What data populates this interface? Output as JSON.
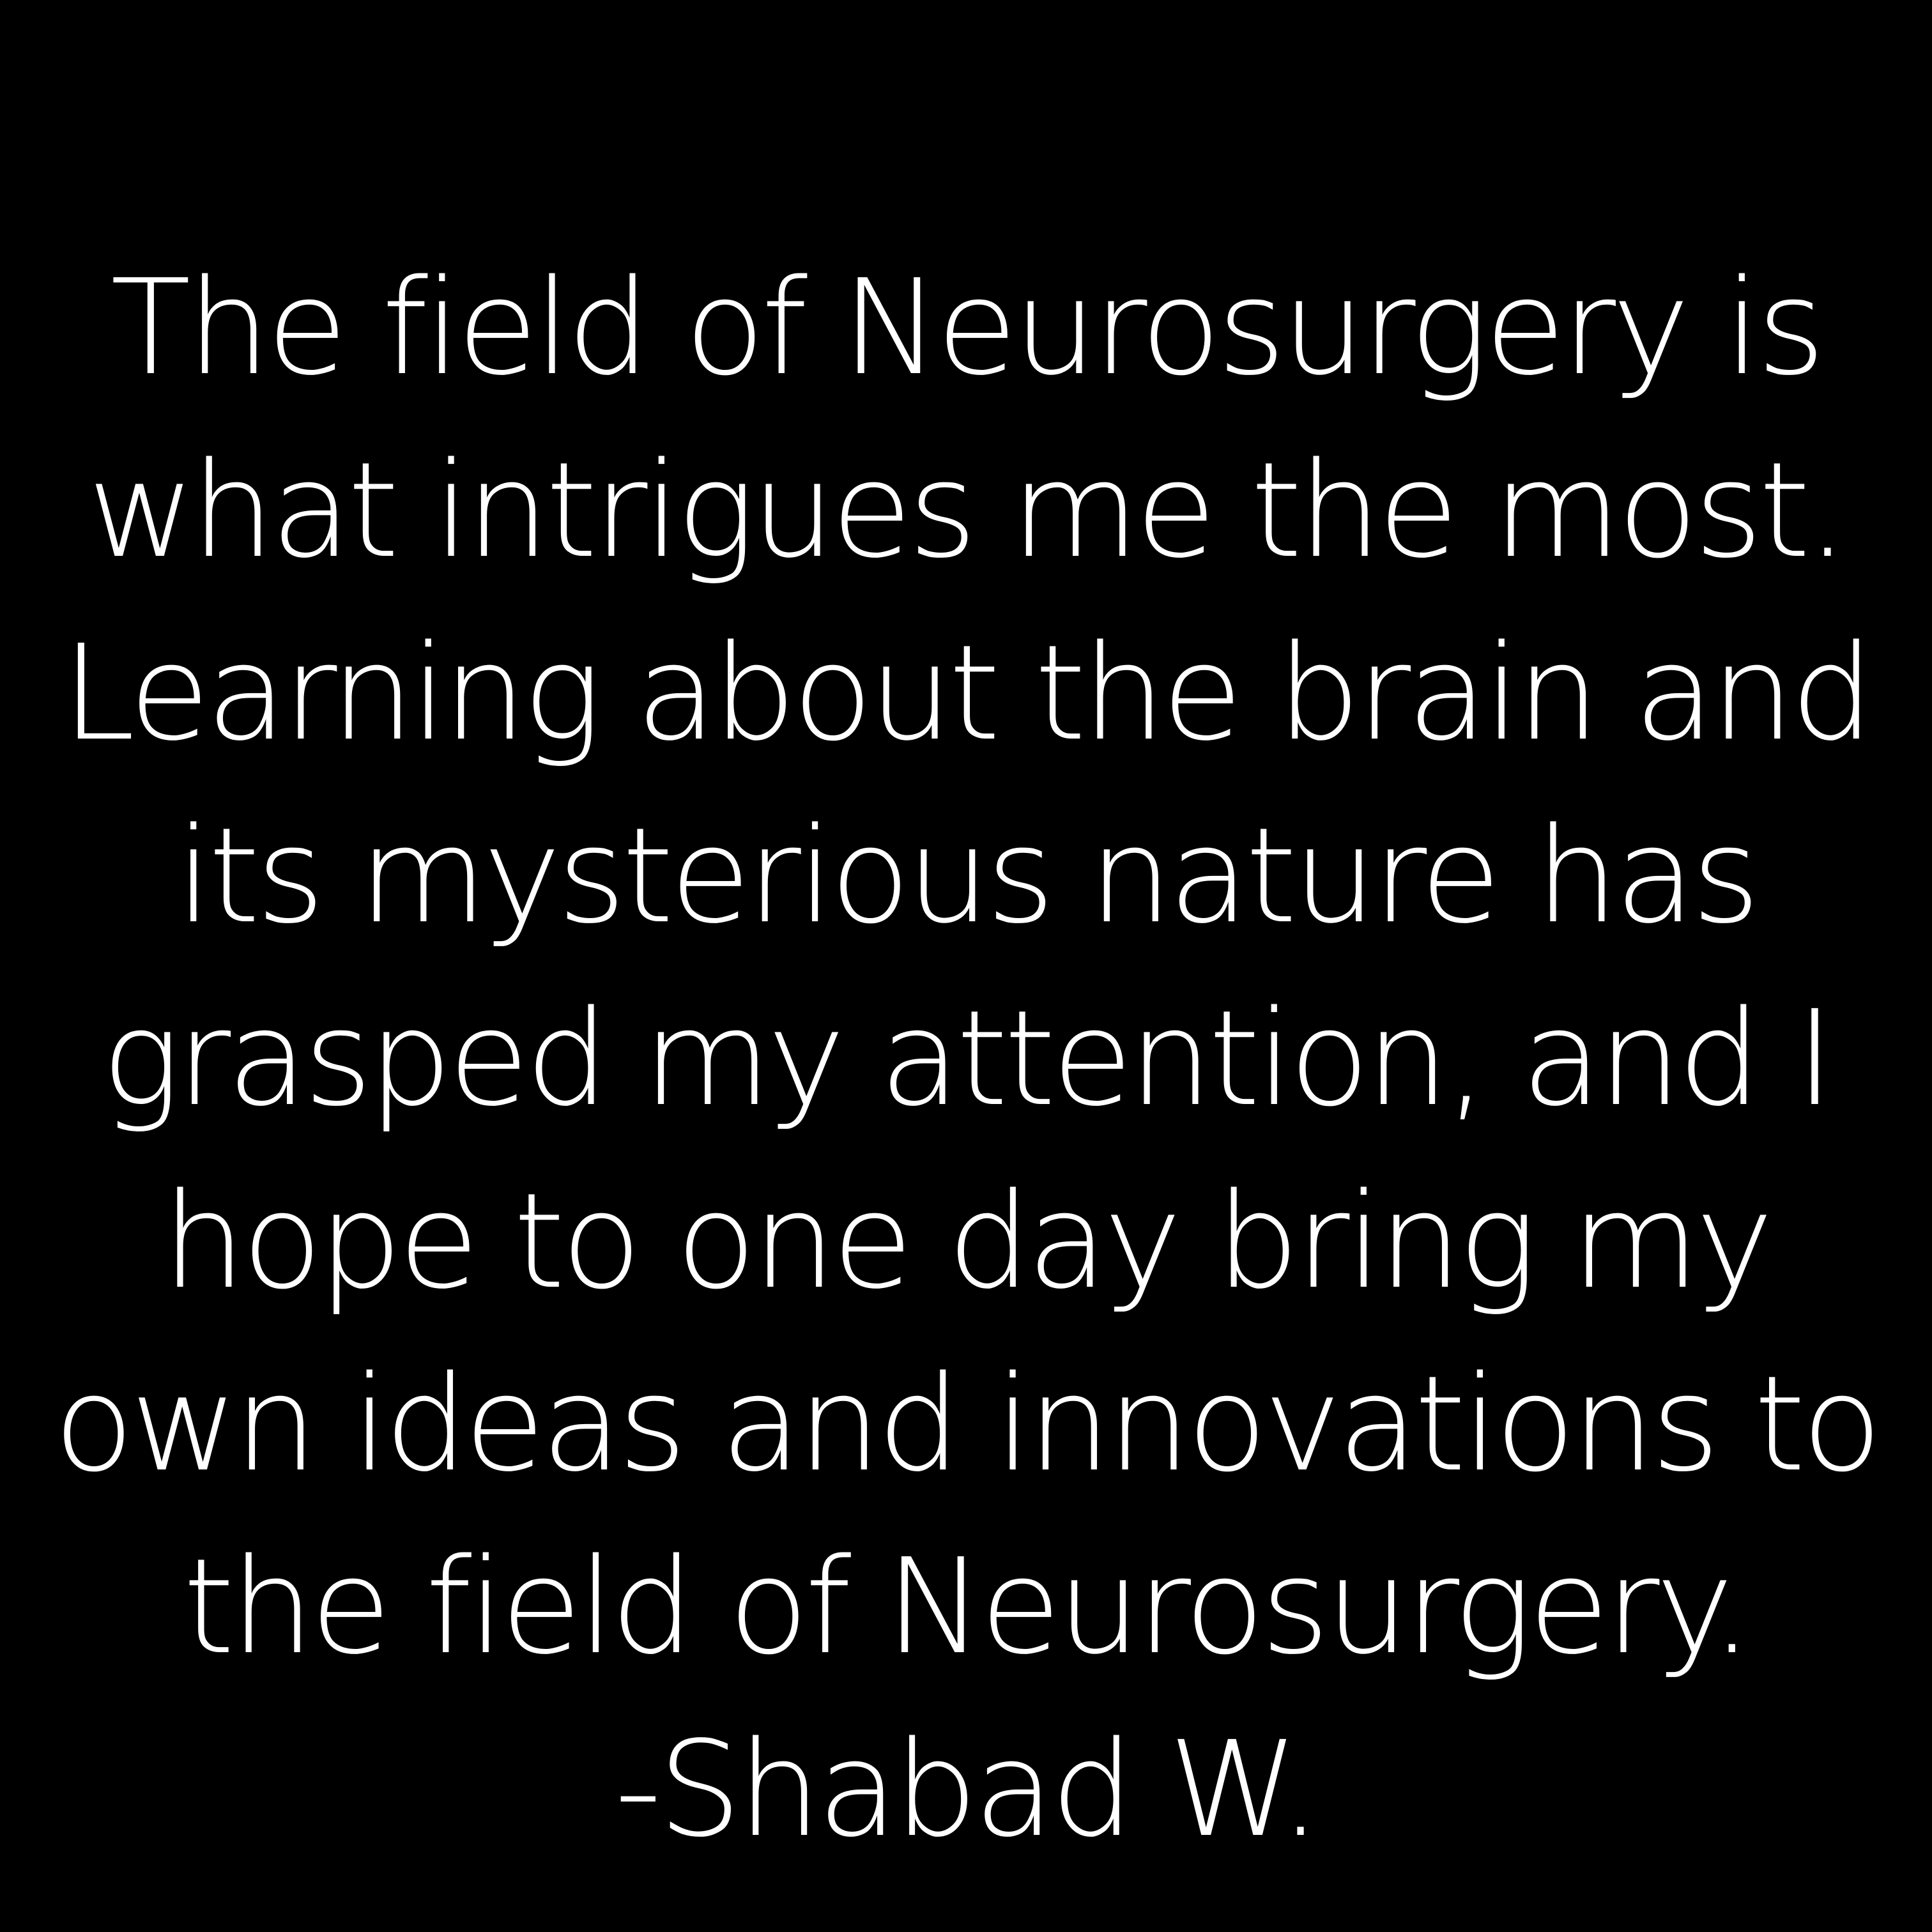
{
  "quote": {
    "lines": [
      "The field of Neurosurgery is",
      "what intrigues me the most.",
      "Learning about the brain and",
      "its mysterious nature has",
      "grasped my attention, and I",
      "hope to one day bring my",
      "own ideas and innovations to",
      "the field of Neurosurgery."
    ],
    "author": "-Shabad W."
  },
  "colors": {
    "background": "#000000",
    "text": "#ffffff"
  }
}
